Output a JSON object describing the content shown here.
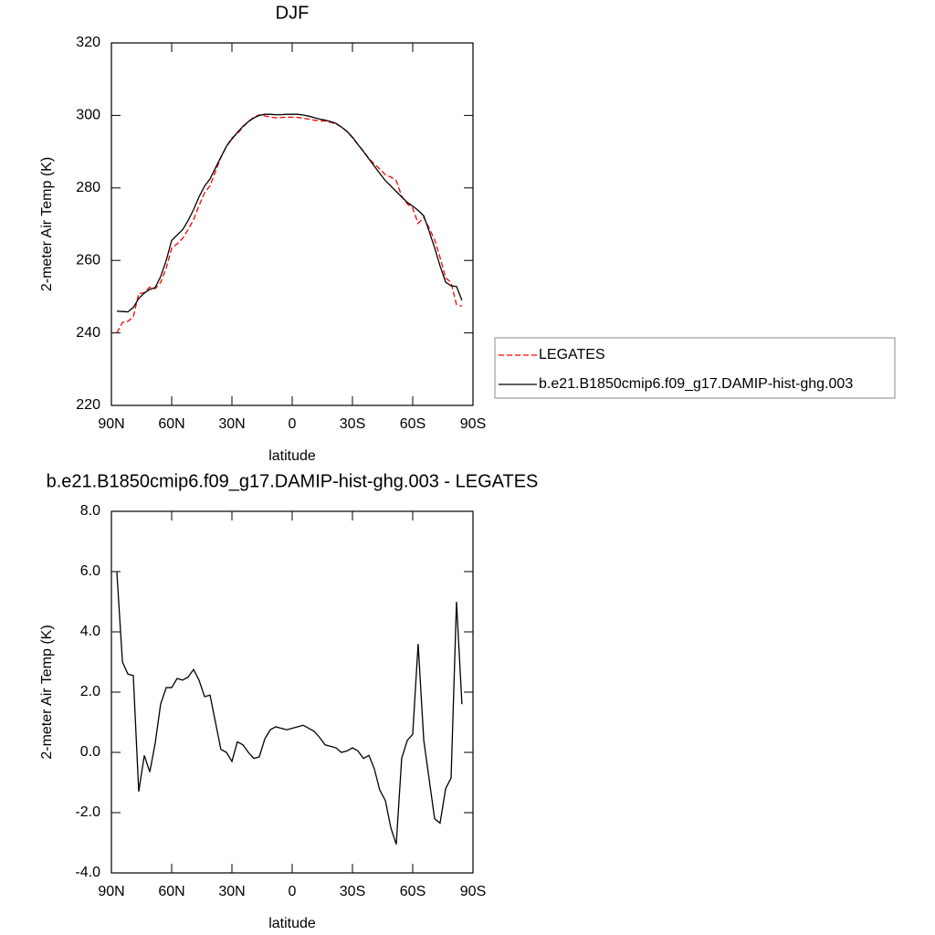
{
  "chart_data": [
    {
      "type": "line",
      "title": "DJF",
      "xlabel": "latitude",
      "ylabel": "2-meter Air Temp (K)",
      "x": [
        87.3,
        84.5,
        81.8,
        79.1,
        76.4,
        73.6,
        70.9,
        68.2,
        65.5,
        62.7,
        60.0,
        57.3,
        54.5,
        51.8,
        49.1,
        46.4,
        43.6,
        40.9,
        38.2,
        35.5,
        32.7,
        30.0,
        27.3,
        24.5,
        21.8,
        19.1,
        16.4,
        13.6,
        10.9,
        8.2,
        5.5,
        2.7,
        0.0,
        -2.7,
        -5.5,
        -8.2,
        -10.9,
        -13.6,
        -16.4,
        -19.1,
        -21.8,
        -24.5,
        -27.3,
        -30.0,
        -32.7,
        -35.5,
        -38.2,
        -40.9,
        -43.6,
        -46.4,
        -49.1,
        -51.8,
        -54.5,
        -57.3,
        -60.0,
        -62.7,
        -65.5,
        -68.2,
        -70.9,
        -73.6,
        -76.4,
        -79.1,
        -81.8,
        -84.5
      ],
      "series": [
        {
          "name": "LEGATES",
          "color": "#ff0000",
          "dashed": true,
          "values": [
            240.0,
            242.9,
            243.2,
            244.45,
            250.8,
            251.1,
            252.65,
            252.2,
            253.9,
            257.85,
            263.35,
            264.55,
            266.1,
            268.5,
            271.25,
            275.1,
            278.65,
            280.6,
            284.5,
            288.4,
            291.5,
            293.8,
            294.95,
            296.75,
            298.3,
            299.5,
            300.15,
            299.85,
            299.55,
            299.35,
            299.4,
            299.55,
            299.5,
            299.45,
            299.2,
            299.0,
            298.7,
            298.5,
            298.45,
            298.1,
            297.65,
            296.8,
            295.55,
            293.85,
            291.95,
            290.2,
            288.1,
            286.55,
            285.25,
            283.6,
            283.0,
            282.05,
            277.7,
            275.6,
            274.4,
            270.2,
            271.9,
            268.9,
            265.7,
            260.85,
            255.2,
            253.85,
            247.8,
            247.4
          ]
        },
        {
          "name": "b.e21.B1850cmip6.f09_g17.DAMIP-hist-ghg.003",
          "color": "#000000",
          "dashed": false,
          "values": [
            246.0,
            245.9,
            245.8,
            247.0,
            249.5,
            251.0,
            252.0,
            252.5,
            255.5,
            260.0,
            265.5,
            267.0,
            268.5,
            271.0,
            274.0,
            277.5,
            280.5,
            282.5,
            285.5,
            288.5,
            291.5,
            293.5,
            295.3,
            297.0,
            298.3,
            299.3,
            300.0,
            300.3,
            300.3,
            300.2,
            300.2,
            300.3,
            300.3,
            300.3,
            300.1,
            299.8,
            299.4,
            299.0,
            298.7,
            298.3,
            297.8,
            296.8,
            295.6,
            294.0,
            292.0,
            290.0,
            288.0,
            286.0,
            284.0,
            282.0,
            280.5,
            279.0,
            277.5,
            276.0,
            275.0,
            273.8,
            272.3,
            268.0,
            263.5,
            258.5,
            254.0,
            253.0,
            252.8,
            249.0
          ]
        }
      ],
      "xlim": [
        90,
        -90
      ],
      "xticks": [
        {
          "value": 90,
          "label": "90N"
        },
        {
          "value": 60,
          "label": "60N"
        },
        {
          "value": 30,
          "label": "30N"
        },
        0,
        {
          "value": -30,
          "label": "30S"
        },
        {
          "value": -60,
          "label": "60S"
        },
        {
          "value": -90,
          "label": "90S"
        }
      ],
      "ylim": [
        220,
        320
      ],
      "yticks": [
        220,
        240,
        260,
        280,
        300,
        320
      ],
      "legend": "right"
    },
    {
      "type": "line",
      "title": "b.e21.B1850cmip6.f09_g17.DAMIP-hist-ghg.003 - LEGATES",
      "xlabel": "latitude",
      "ylabel": "2-meter Air Temp (K)",
      "x": [
        87.3,
        84.5,
        81.8,
        79.1,
        76.4,
        73.6,
        70.9,
        68.2,
        65.5,
        62.7,
        60.0,
        57.3,
        54.5,
        51.8,
        49.1,
        46.4,
        43.6,
        40.9,
        38.2,
        35.5,
        32.7,
        30.0,
        27.3,
        24.5,
        21.8,
        19.1,
        16.4,
        13.6,
        10.9,
        8.2,
        5.5,
        2.7,
        0.0,
        -2.7,
        -5.5,
        -8.2,
        -10.9,
        -13.6,
        -16.4,
        -19.1,
        -21.8,
        -24.5,
        -27.3,
        -30.0,
        -32.7,
        -35.5,
        -38.2,
        -40.9,
        -43.6,
        -46.4,
        -49.1,
        -51.8,
        -54.5,
        -57.3,
        -60.0,
        -62.7,
        -65.5,
        -68.2,
        -70.9,
        -73.6,
        -76.4,
        -79.1,
        -81.8,
        -84.5
      ],
      "series": [
        {
          "color": "#000000",
          "dashed": false,
          "values": [
            6.0,
            3.0,
            2.6,
            2.55,
            -1.3,
            -0.1,
            -0.65,
            0.3,
            1.6,
            2.15,
            2.15,
            2.45,
            2.4,
            2.5,
            2.75,
            2.4,
            1.85,
            1.9,
            1.0,
            0.1,
            0.0,
            -0.3,
            0.35,
            0.25,
            0.0,
            -0.2,
            -0.15,
            0.45,
            0.75,
            0.85,
            0.8,
            0.75,
            0.8,
            0.85,
            0.9,
            0.8,
            0.7,
            0.5,
            0.25,
            0.2,
            0.15,
            0.0,
            0.05,
            0.15,
            0.05,
            -0.2,
            -0.1,
            -0.55,
            -1.25,
            -1.6,
            -2.5,
            -3.05,
            -0.2,
            0.4,
            0.6,
            3.6,
            0.4,
            -0.9,
            -2.2,
            -2.35,
            -1.2,
            -0.85,
            5.0,
            1.6
          ]
        }
      ],
      "xlim": [
        90,
        -90
      ],
      "xticks": [
        {
          "value": 90,
          "label": "90N"
        },
        {
          "value": 60,
          "label": "60N"
        },
        {
          "value": 30,
          "label": "30N"
        },
        0,
        {
          "value": -30,
          "label": "30S"
        },
        {
          "value": -60,
          "label": "60S"
        },
        {
          "value": -90,
          "label": "90S"
        }
      ],
      "ylim": [
        -4,
        8
      ],
      "yticks": [
        {
          "value": -4,
          "label": "-4.0"
        },
        {
          "value": -2,
          "label": "-2.0"
        },
        {
          "value": 0,
          "label": "0.0"
        },
        {
          "value": 2,
          "label": "2.0"
        },
        {
          "value": 4,
          "label": "4.0"
        },
        {
          "value": 6,
          "label": "6.0"
        },
        {
          "value": 8,
          "label": "8.0"
        }
      ]
    }
  ]
}
